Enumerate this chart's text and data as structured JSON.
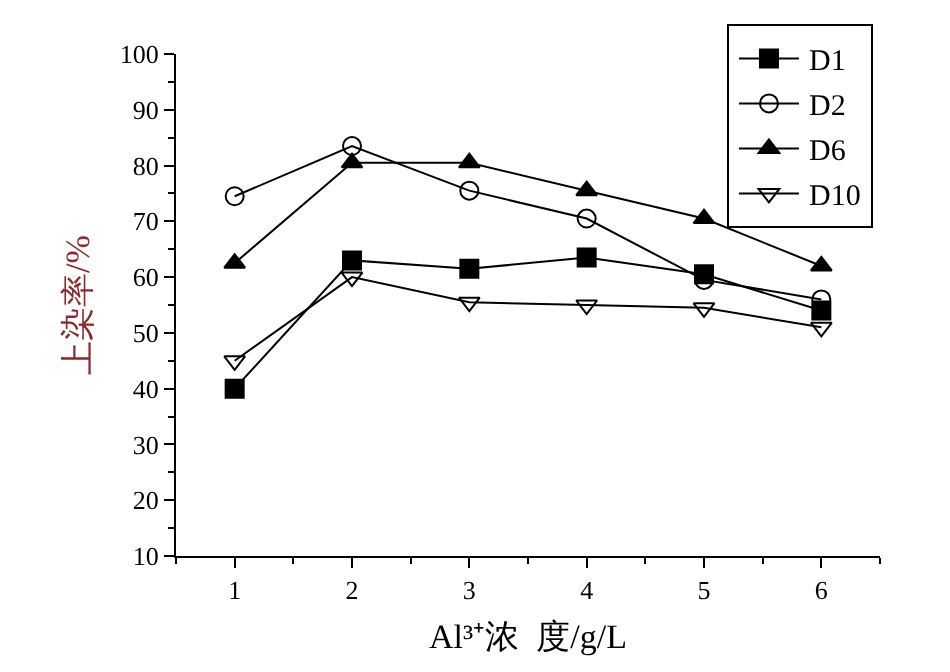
{
  "chart_data": {
    "type": "line",
    "xlabel": "Al³⁺浓  度/g/L",
    "ylabel": "上染率/%",
    "x": [
      1,
      2,
      3,
      4,
      5,
      6
    ],
    "series": [
      {
        "name": "D1",
        "color": "#000000",
        "marker": "square",
        "values": [
          40,
          63,
          61.5,
          63.5,
          60.5,
          54
        ]
      },
      {
        "name": "D2",
        "color": "#000000",
        "marker": "circle",
        "values": [
          74.5,
          83.5,
          75.5,
          70.5,
          59.5,
          56
        ]
      },
      {
        "name": "D6",
        "color": "#000000",
        "marker": "triangle",
        "values": [
          62.5,
          80.5,
          80.5,
          75.5,
          70.5,
          62
        ]
      },
      {
        "name": "D10",
        "color": "#000000",
        "marker": "triangle-down",
        "values": [
          45,
          60,
          55.5,
          55,
          54.5,
          51
        ]
      }
    ],
    "xlim": [
      0.5,
      6.5
    ],
    "xticks": [
      1,
      2,
      3,
      4,
      5,
      6
    ],
    "ylim": [
      10,
      100
    ],
    "yticks": [
      10,
      20,
      30,
      40,
      50,
      60,
      70,
      80,
      90,
      100
    ],
    "grid": false,
    "legend": "top right",
    "line_style": "solid"
  }
}
